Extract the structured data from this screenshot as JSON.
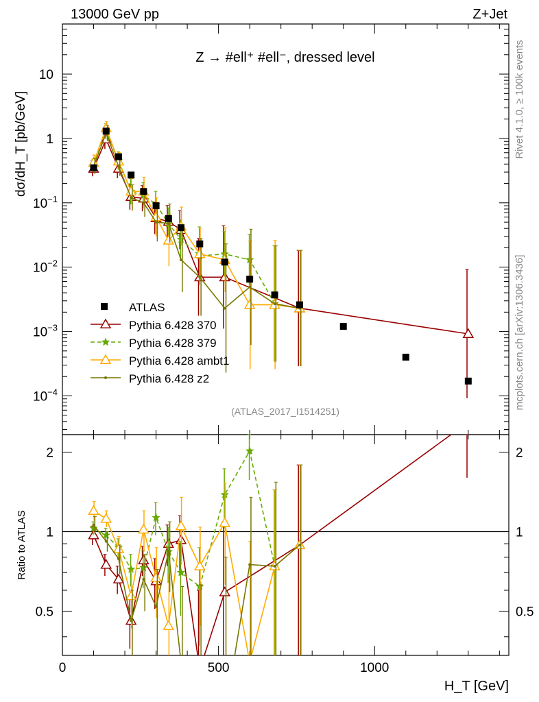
{
  "header": {
    "left": "13000 GeV pp",
    "right": "Z+Jet"
  },
  "side": {
    "rivet": "Rivet 4.1.0, ≥ 100k events",
    "mcplots": "mcplots.cern.ch [arXiv:1306.3436]"
  },
  "chart_data": {
    "type": "scatter",
    "title": "Z → #ell⁺ #ell⁻, dressed level",
    "analysis_id": "(ATLAS_2017_I1514251)",
    "ylabel": "dσ/dH_T [pb/GeV]",
    "xlabel": "H_T [GeV]",
    "ratio_ylabel": "Ratio to ATLAS",
    "xlim": [
      0,
      1430
    ],
    "ylim": [
      2.5e-05,
      60
    ],
    "ratio_ylim": [
      0.34,
      2.33
    ],
    "yscale": "log",
    "x_ticks": [
      0,
      500,
      1000
    ],
    "y_tick_labels": [
      {
        "v": 10,
        "base": "10",
        "exp": ""
      },
      {
        "v": 1,
        "base": "1",
        "exp": ""
      },
      {
        "v": 0.1,
        "base": "10",
        "exp": "−1"
      },
      {
        "v": 0.01,
        "base": "10",
        "exp": "−2"
      },
      {
        "v": 0.001,
        "base": "10",
        "exp": "−3"
      },
      {
        "v": 0.0001,
        "base": "10",
        "exp": "−4"
      }
    ],
    "ratio_ticks": [
      0.5,
      1,
      2
    ],
    "data": {
      "name": "ATLAS",
      "x": [
        100,
        140,
        180,
        220,
        260,
        300,
        340,
        380,
        440,
        520,
        600,
        680,
        760,
        900,
        1100,
        1300
      ],
      "y": [
        0.35,
        1.3,
        0.52,
        0.27,
        0.15,
        0.09,
        0.057,
        0.041,
        0.023,
        0.012,
        0.0065,
        0.0037,
        0.0026,
        0.0012,
        0.0004,
        0.00017
      ]
    },
    "series": [
      {
        "name": "Pythia 6.428 370",
        "color": "#990000",
        "dash": "",
        "marker": "open-triangle",
        "x": [
          100,
          140,
          180,
          220,
          260,
          300,
          340,
          380,
          440,
          520,
          760,
          1300
        ],
        "y": [
          0.34,
          0.97,
          0.34,
          0.124,
          0.117,
          0.058,
          0.051,
          0.038,
          0.007,
          0.007,
          0.0023,
          0.00092
        ],
        "err": [
          0.12,
          0.15,
          0.15,
          0.2,
          0.2,
          0.25,
          0.25,
          0.3,
          0.6,
          0.8,
          0.9,
          1.0
        ],
        "ratio": [
          0.97,
          0.75,
          0.66,
          0.46,
          0.78,
          0.65,
          0.9,
          0.93,
          0.3,
          0.59,
          0.89,
          2.6
        ],
        "ratio_err": [
          0.08,
          0.07,
          0.08,
          0.1,
          0.1,
          0.14,
          0.16,
          0.22,
          0.3,
          0.5,
          0.9,
          1.0
        ]
      },
      {
        "name": "Pythia 6.428 379",
        "color": "#66aa00",
        "dash": "6,4",
        "marker": "star",
        "x": [
          100,
          140,
          180,
          220,
          260,
          300,
          340,
          380,
          440,
          520,
          600,
          680
        ],
        "y": [
          0.38,
          1.28,
          0.45,
          0.15,
          0.13,
          0.095,
          0.047,
          0.027,
          0.015,
          0.016,
          0.013,
          0.0027
        ],
        "err": [
          0.1,
          0.12,
          0.14,
          0.2,
          0.2,
          0.2,
          0.25,
          0.3,
          0.45,
          0.35,
          0.4,
          0.9
        ],
        "ratio": [
          1.03,
          0.97,
          0.87,
          0.72,
          0.73,
          1.13,
          0.84,
          0.7,
          0.62,
          1.38,
          2.02,
          0.74
        ],
        "ratio_err": [
          0.06,
          0.06,
          0.07,
          0.1,
          0.12,
          0.16,
          0.2,
          0.22,
          0.25,
          0.35,
          0.45,
          0.7
        ]
      },
      {
        "name": "Pythia 6.428 ambt1",
        "color": "#ffaa00",
        "dash": "",
        "marker": "open-triangle",
        "x": [
          100,
          140,
          180,
          220,
          260,
          300,
          340,
          380,
          440,
          520,
          600,
          680,
          760
        ],
        "y": [
          0.42,
          1.45,
          0.44,
          0.15,
          0.15,
          0.06,
          0.026,
          0.043,
          0.016,
          0.013,
          0.0026,
          0.0026,
          0.0023
        ],
        "err": [
          0.12,
          0.1,
          0.14,
          0.2,
          0.22,
          0.3,
          0.4,
          0.3,
          0.4,
          0.5,
          1.0,
          1.0,
          0.9
        ],
        "ratio": [
          1.2,
          1.12,
          0.86,
          0.57,
          1.02,
          0.67,
          0.44,
          1.05,
          0.74,
          1.08,
          0.32,
          0.74,
          0.89
        ],
        "ratio_err": [
          0.1,
          0.08,
          0.1,
          0.14,
          0.18,
          0.2,
          0.25,
          0.3,
          0.3,
          0.45,
          0.6,
          0.7,
          0.9
        ]
      },
      {
        "name": "Pythia 6.428 z2",
        "color": "#777700",
        "dash": "",
        "marker": "dot",
        "x": [
          100,
          140,
          180,
          220,
          260,
          300,
          340,
          380,
          440,
          520,
          600,
          680,
          760
        ],
        "y": [
          0.37,
          1.2,
          0.37,
          0.12,
          0.1,
          0.05,
          0.048,
          0.013,
          0.007,
          0.0023,
          0.0049,
          0.0027,
          0.0023
        ],
        "err": [
          0.12,
          0.12,
          0.15,
          0.2,
          0.22,
          0.3,
          0.3,
          0.5,
          0.6,
          1.0,
          0.9,
          0.9,
          0.9
        ],
        "ratio": [
          1.06,
          0.92,
          0.79,
          0.46,
          0.66,
          0.52,
          0.84,
          0.32,
          0.28,
          0.2,
          0.75,
          0.74,
          0.89
        ],
        "ratio_err": [
          0.08,
          0.08,
          0.1,
          0.14,
          0.16,
          0.2,
          0.25,
          0.3,
          0.35,
          0.6,
          0.6,
          0.8,
          0.9
        ]
      }
    ],
    "legend": {
      "position": "lower-left",
      "entries": [
        "ATLAS",
        "Pythia 6.428 370",
        "Pythia 6.428 379",
        "Pythia 6.428 ambt1",
        "Pythia 6.428 z2"
      ]
    }
  }
}
